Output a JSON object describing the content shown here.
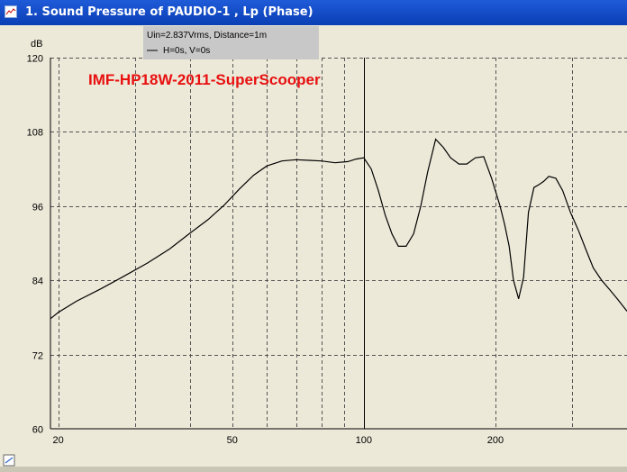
{
  "window": {
    "title": "1. Sound Pressure of PAUDIO-1 , Lp (Phase)"
  },
  "legend": {
    "line1": "Uin=2.837Vrms, Distance=1m",
    "line2": "H=0s, V=0s"
  },
  "colors": {
    "titlebar": "#0A3FB5",
    "plot_background": "#ECE9D8",
    "curve": "#000000",
    "annotation": "#E81010",
    "legend_background": "#C8C8C8"
  },
  "chart_data": {
    "type": "line",
    "title": "",
    "annotation": "IMF-HP18W-2011-SuperScooper",
    "xlabel": "",
    "ylabel": "dB",
    "x_scale": "log",
    "xlim": [
      19.2,
      400
    ],
    "ylim": [
      60,
      120
    ],
    "grid": true,
    "y_ticks": [
      120,
      108,
      96,
      84,
      72,
      60
    ],
    "x_tick_labels": [
      {
        "value": 20,
        "label": "20"
      },
      {
        "value": 50,
        "label": "50"
      },
      {
        "value": 100,
        "label": "100"
      },
      {
        "value": 200,
        "label": "200"
      }
    ],
    "series": [
      {
        "x": [
          19.2,
          20,
          22,
          25,
          28,
          32,
          36,
          40,
          44,
          48,
          52,
          56,
          60,
          65,
          70,
          75,
          80,
          86,
          92,
          96,
          100,
          104,
          108,
          112,
          116,
          120,
          125,
          130,
          135,
          140,
          146,
          152,
          158,
          165,
          172,
          180,
          188,
          196,
          205,
          210,
          215,
          220,
          226,
          232,
          238,
          245,
          252,
          258,
          265,
          275,
          285,
          297,
          310,
          322,
          335,
          350,
          365,
          380,
          400
        ],
        "y": [
          77.8,
          78.8,
          80.6,
          82.6,
          84.5,
          86.8,
          89.1,
          91.6,
          93.8,
          96.2,
          98.8,
          101.0,
          102.5,
          103.3,
          103.5,
          103.4,
          103.3,
          103.0,
          103.2,
          103.6,
          103.8,
          102.0,
          98.5,
          94.5,
          91.5,
          89.5,
          89.5,
          91.5,
          96.0,
          101.5,
          106.8,
          105.5,
          103.8,
          102.8,
          102.8,
          103.8,
          104.0,
          100.5,
          96.0,
          93.0,
          89.5,
          84.0,
          81.0,
          84.5,
          95.0,
          99.0,
          99.5,
          100.0,
          100.8,
          100.5,
          98.5,
          95.0,
          92.0,
          89.0,
          86.0,
          84.0,
          82.5,
          81.0,
          79.0
        ]
      }
    ]
  }
}
